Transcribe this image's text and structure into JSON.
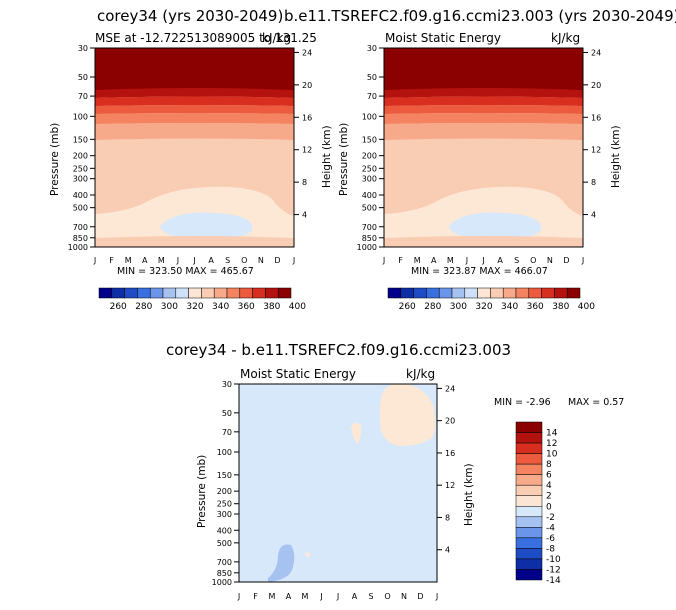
{
  "page": {
    "title_left": "corey34 (yrs 2030-2049)",
    "title_right": "b.e11.TSREFC2.f09.g16.ccmi23.003 (yrs 2030-2049)",
    "title_bottom": "corey34 - b.e11.TSREFC2.f09.g16.ccmi23.003"
  },
  "chart_data": [
    {
      "type": "heatmap",
      "panel": "left",
      "header_left": "MSE at -12.722513089005 to 131.25",
      "header_right": "kJ/kg",
      "ylabel": "Pressure (mb)",
      "y2label": "Height (km)",
      "pressure_ticks": [
        "30",
        "50",
        "70",
        "100",
        "150",
        "200",
        "250",
        "300",
        "400",
        "500",
        "700",
        "850",
        "1000"
      ],
      "height_ticks": [
        "24",
        "20",
        "16",
        "12",
        "8",
        "4"
      ],
      "months": [
        "J",
        "F",
        "M",
        "A",
        "M",
        "J",
        "J",
        "A",
        "S",
        "O",
        "N",
        "D",
        "J"
      ],
      "stats": "MIN = 323.50 MAX = 465.67",
      "colorbar_labels": [
        "260",
        "280",
        "300",
        "320",
        "340",
        "360",
        "380",
        "400"
      ]
    },
    {
      "type": "heatmap",
      "panel": "right",
      "header_left": "Moist Static Energy",
      "header_right": "kJ/kg",
      "ylabel": "Pressure (mb)",
      "y2label": "Height (km)",
      "pressure_ticks": [
        "30",
        "50",
        "70",
        "100",
        "150",
        "200",
        "250",
        "300",
        "400",
        "500",
        "700",
        "850",
        "1000"
      ],
      "height_ticks": [
        "24",
        "20",
        "16",
        "12",
        "8",
        "4"
      ],
      "months": [
        "J",
        "F",
        "M",
        "A",
        "M",
        "J",
        "J",
        "A",
        "S",
        "O",
        "N",
        "D",
        "J"
      ],
      "stats": "MIN = 323.87 MAX = 466.07",
      "colorbar_labels": [
        "260",
        "280",
        "300",
        "320",
        "340",
        "360",
        "380",
        "400"
      ]
    },
    {
      "type": "heatmap",
      "panel": "difference",
      "header_left": "Moist Static Energy",
      "header_right": "kJ/kg",
      "ylabel": "Pressure (mb)",
      "y2label": "Height (km)",
      "pressure_ticks": [
        "30",
        "50",
        "70",
        "100",
        "150",
        "200",
        "250",
        "300",
        "400",
        "500",
        "700",
        "850",
        "1000"
      ],
      "height_ticks": [
        "24",
        "20",
        "16",
        "12",
        "8",
        "4"
      ],
      "months": [
        "J",
        "F",
        "M",
        "A",
        "M",
        "J",
        "J",
        "A",
        "S",
        "O",
        "N",
        "D",
        "J"
      ],
      "stats_min": "MIN = -2.96",
      "stats_max": "MAX = 0.57",
      "colorbar_labels": [
        "14",
        "12",
        "10",
        "8",
        "6",
        "4",
        "2",
        "0",
        "-2",
        "-4",
        "-6",
        "-8",
        "-10",
        "-12",
        "-14"
      ]
    }
  ],
  "colors": {
    "abs_scale": [
      "#00008b",
      "#0e2ea5",
      "#1d4cc4",
      "#3a6fdf",
      "#6a95ea",
      "#a6c2f0",
      "#cfe0f9",
      "#fbe6d5",
      "#f9cdb3",
      "#f7aa8a",
      "#f38361",
      "#ec5b3e",
      "#d82e1f",
      "#b3120f",
      "#8b0000"
    ],
    "diff_scale": [
      "#8b0000",
      "#b3120f",
      "#d82e1f",
      "#ec5b3e",
      "#f38361",
      "#f7aa8a",
      "#f9cdb3",
      "#fbe6d5",
      "#d7e8fb",
      "#a6c2f0",
      "#6a95ea",
      "#3a6fdf",
      "#1d4cc4",
      "#0e2ea5",
      "#00008b"
    ],
    "fill_dark": "#8b0000",
    "fill_band1": "#a50f0f",
    "fill_band2": "#d82e1f",
    "fill_band3": "#ec5b3e",
    "fill_band4": "#f38361",
    "fill_band5": "#f7aa8a",
    "fill_peach": "#f9cdb3",
    "fill_cream": "#fde8d6",
    "fill_lightblue": "#d7e8fb",
    "fill_blue": "#a6c2f0"
  }
}
